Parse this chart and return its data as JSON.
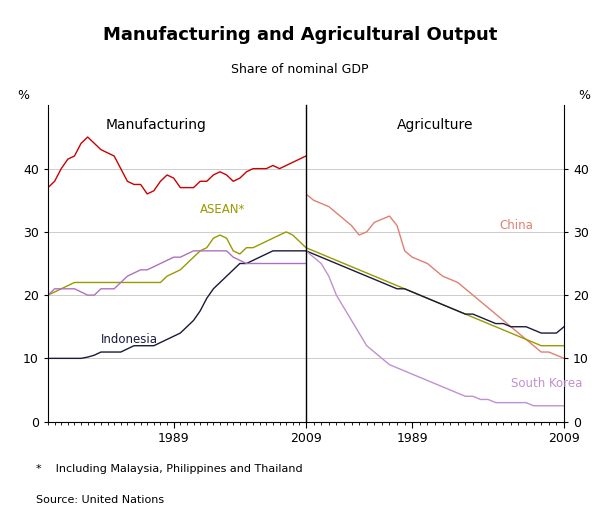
{
  "title": "Manufacturing and Agricultural Output",
  "subtitle": "Share of nominal GDP",
  "footnote": "*    Including Malaysia, Philippines and Thailand",
  "source": "Source: United Nations",
  "ylim": [
    0,
    50
  ],
  "yticks": [
    0,
    10,
    20,
    30,
    40
  ],
  "colors": {
    "china_manuf": "#cc0000",
    "asean_manuf": "#999900",
    "indonesia_manuf": "#1a1a3a",
    "south_korea_manuf": "#b070c0",
    "china_agri": "#e08070",
    "asean_agri": "#999900",
    "indonesia_agri": "#1a1a3a",
    "south_korea_agri": "#c090d0"
  },
  "m_years": [
    1970,
    1971,
    1972,
    1973,
    1974,
    1975,
    1976,
    1977,
    1978,
    1979,
    1980,
    1981,
    1982,
    1983,
    1984,
    1985,
    1986,
    1987,
    1988,
    1989,
    1990,
    1991,
    1992,
    1993,
    1994,
    1995,
    1996,
    1997,
    1998,
    1999,
    2000,
    2001,
    2002,
    2003,
    2004,
    2005,
    2006,
    2007,
    2008,
    2009
  ],
  "china_m": [
    37,
    38,
    40,
    41.5,
    42,
    44,
    45,
    44,
    43,
    42.5,
    42,
    40,
    38,
    37.5,
    37.5,
    36,
    36.5,
    38,
    39,
    38.5,
    37,
    37,
    37,
    38,
    38,
    39,
    39.5,
    39,
    38,
    38.5,
    39.5,
    40,
    40,
    40,
    40.5,
    40,
    40.5,
    41,
    41.5,
    42
  ],
  "asean_m": [
    20,
    20.5,
    21,
    21.5,
    22,
    22,
    22,
    22,
    22,
    22,
    22,
    22,
    22,
    22,
    22,
    22,
    22,
    22,
    23,
    23.5,
    24,
    25,
    26,
    27,
    27.5,
    29,
    29.5,
    29,
    27,
    26.5,
    27.5,
    27.5,
    28,
    28.5,
    29,
    29.5,
    30,
    29.5,
    28.5,
    27.5
  ],
  "indonesia_m": [
    10,
    10,
    10,
    10,
    10,
    10,
    10.2,
    10.5,
    11,
    11,
    11,
    11,
    11.5,
    12,
    12,
    12,
    12,
    12.5,
    13,
    13.5,
    14,
    15,
    16,
    17.5,
    19.5,
    21,
    22,
    23,
    24,
    25,
    25,
    25.5,
    26,
    26.5,
    27,
    27,
    27,
    27,
    27,
    27
  ],
  "sk_m": [
    20,
    21,
    21,
    21,
    21,
    20.5,
    20,
    20,
    21,
    21,
    21,
    22,
    23,
    23.5,
    24,
    24,
    24.5,
    25,
    25.5,
    26,
    26,
    26.5,
    27,
    27,
    27,
    27,
    27,
    27,
    26,
    25.5,
    25,
    25,
    25,
    25,
    25,
    25,
    25,
    25,
    25,
    25
  ],
  "a_years": [
    1975,
    1976,
    1977,
    1978,
    1979,
    1980,
    1981,
    1982,
    1983,
    1984,
    1985,
    1986,
    1987,
    1988,
    1989,
    1990,
    1991,
    1992,
    1993,
    1994,
    1995,
    1996,
    1997,
    1998,
    1999,
    2000,
    2001,
    2002,
    2003,
    2004,
    2005,
    2006,
    2007,
    2008,
    2009
  ],
  "china_a": [
    36,
    35,
    34.5,
    34,
    33,
    32,
    31,
    29.5,
    30,
    31.5,
    32,
    32.5,
    31,
    27,
    26,
    25.5,
    25,
    24,
    23,
    22.5,
    22,
    21,
    20,
    19,
    18,
    17,
    16,
    15,
    14,
    13,
    12,
    11,
    11,
    10.5,
    10
  ],
  "asean_a": [
    27.5,
    27,
    26.5,
    26,
    25.5,
    25,
    24.5,
    24,
    23.5,
    23,
    22.5,
    22,
    21.5,
    21,
    20.5,
    20,
    19.5,
    19,
    18.5,
    18,
    17.5,
    17,
    16.5,
    16,
    15.5,
    15,
    14.5,
    14,
    13.5,
    13,
    12.5,
    12,
    12,
    12,
    12
  ],
  "indonesia_a": [
    27,
    26.5,
    26,
    25.5,
    25,
    24.5,
    24,
    23.5,
    23,
    22.5,
    22,
    21.5,
    21,
    21,
    20.5,
    20,
    19.5,
    19,
    18.5,
    18,
    17.5,
    17,
    17,
    16.5,
    16,
    15.5,
    15.5,
    15,
    15,
    15,
    14.5,
    14,
    14,
    14,
    15
  ],
  "sk_a": [
    27,
    26,
    25,
    23,
    20,
    18,
    16,
    14,
    12,
    11,
    10,
    9,
    8.5,
    8,
    7.5,
    7,
    6.5,
    6,
    5.5,
    5,
    4.5,
    4,
    4,
    3.5,
    3.5,
    3,
    3,
    3,
    3,
    3,
    2.5,
    2.5,
    2.5,
    2.5,
    2.5
  ]
}
